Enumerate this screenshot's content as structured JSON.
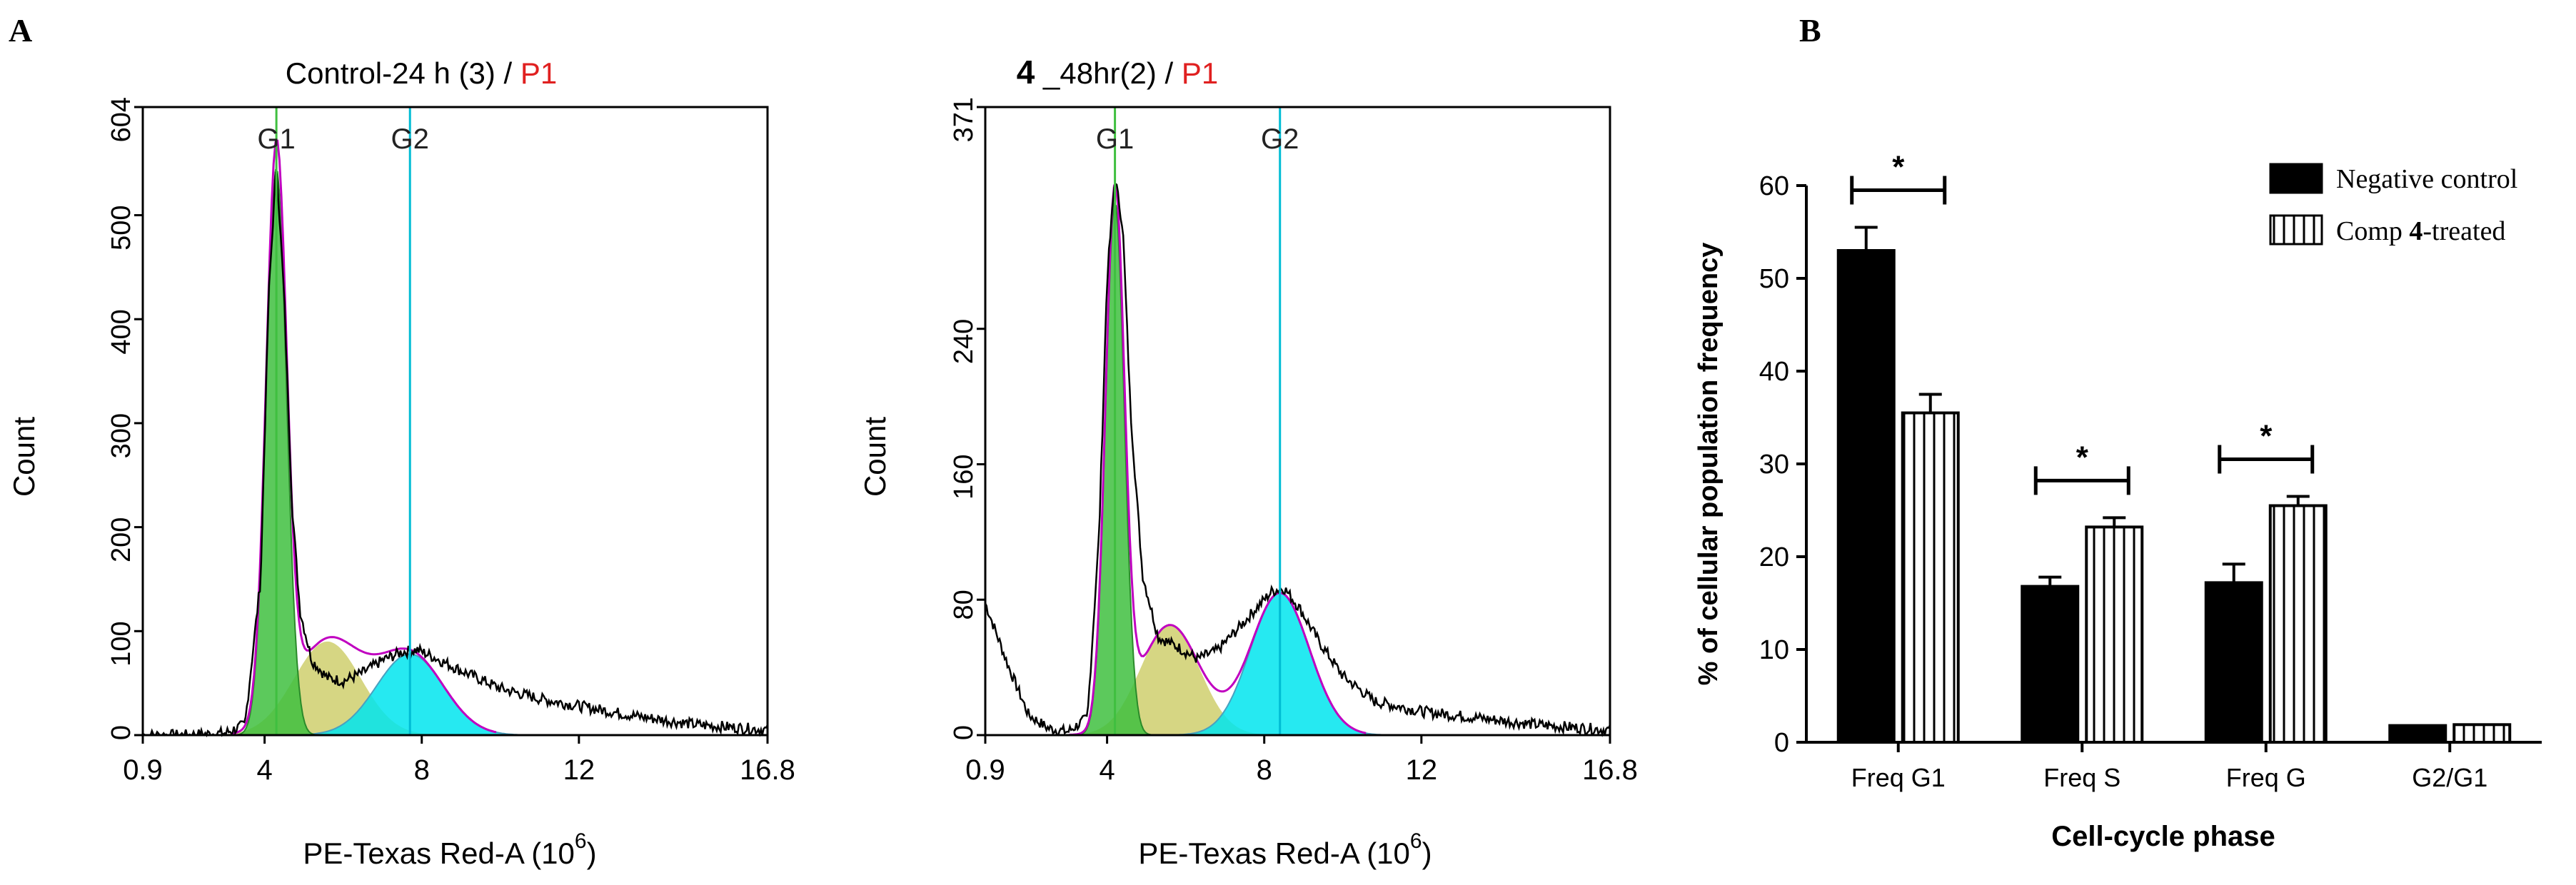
{
  "colors": {
    "panel_label": "#9b4a9b",
    "g1_fill": "#3fbf3f",
    "g2_fill": "#00e5ee",
    "s_fill": "#c8c85a",
    "envelope": "#c000c0",
    "histogram": "#000000",
    "marker_line": "#00bcd4",
    "p1_red": "#e02020"
  },
  "panel_a": {
    "label": "A",
    "hist1": {
      "title_main": "Control-24 h (3) / ",
      "title_p1": "P1",
      "xlabel": "PE-Texas Red-A  (10",
      "xlabel_exp": "6",
      "ylabel": "Count",
      "yticks": [
        "0",
        "100",
        "200",
        "300",
        "400",
        "500",
        "604"
      ],
      "xticks": [
        "0.9",
        "4",
        "8",
        "12",
        "16.8"
      ],
      "peak_labels": [
        "G1",
        "G2"
      ]
    },
    "hist2": {
      "title_bold": "4",
      "title_main": " _48hr(2) / ",
      "title_p1": "P1",
      "xlabel": "PE-Texas Red-A  (10",
      "xlabel_exp": "6",
      "ylabel": "Count",
      "yticks": [
        "0",
        "80",
        "160",
        "240",
        "371"
      ],
      "xticks": [
        "0.9",
        "4",
        "8",
        "12",
        "16.8"
      ],
      "peak_labels": [
        "G1",
        "G2"
      ]
    }
  },
  "panel_b": {
    "label": "B",
    "legend": {
      "negative": "Negative control",
      "treated_pre": "Comp ",
      "treated_bold": "4",
      "treated_post": "-treated"
    },
    "significance_marker": "*"
  },
  "chart_data": [
    {
      "type": "area",
      "title": "Control-24 h (3) / P1",
      "xlabel": "PE-Texas Red-A (10^6)",
      "ylabel": "Count",
      "xlim": [
        0.9,
        16.8
      ],
      "ylim": [
        0,
        604
      ],
      "gates": [
        {
          "name": "G1",
          "x": 4.3
        },
        {
          "name": "G2",
          "x": 7.7
        }
      ],
      "histogram": {
        "x": [
          0.9,
          2.0,
          3.0,
          3.5,
          3.9,
          4.1,
          4.3,
          4.5,
          4.7,
          4.9,
          5.2,
          5.6,
          6.0,
          6.5,
          7.0,
          7.5,
          7.9,
          8.3,
          9.0,
          10.0,
          11.0,
          12.0,
          13.5,
          15.0,
          16.8
        ],
        "y": [
          0,
          0,
          2,
          10,
          150,
          420,
          550,
          420,
          220,
          120,
          72,
          55,
          52,
          60,
          72,
          80,
          82,
          75,
          62,
          45,
          35,
          28,
          18,
          10,
          5
        ]
      },
      "g1_component": {
        "center": 4.3,
        "peak": 545,
        "sigma": 0.26
      },
      "s_component": {
        "center": 5.6,
        "peak": 90,
        "sigma": 0.85
      },
      "g2_component": {
        "center": 7.7,
        "peak": 78,
        "sigma": 0.85
      }
    },
    {
      "type": "area",
      "title": "4 _48hr(2) / P1",
      "xlabel": "PE-Texas Red-A (10^6)",
      "ylabel": "Count",
      "xlim": [
        0.9,
        16.8
      ],
      "ylim": [
        0,
        371
      ],
      "gates": [
        {
          "name": "G1",
          "x": 4.2
        },
        {
          "name": "G2",
          "x": 8.4
        }
      ],
      "histogram": {
        "x": [
          0.9,
          1.5,
          2.0,
          2.5,
          3.0,
          3.5,
          3.8,
          4.0,
          4.2,
          4.4,
          4.6,
          4.9,
          5.3,
          5.8,
          6.3,
          6.8,
          7.3,
          7.8,
          8.2,
          8.5,
          8.9,
          9.4,
          10.0,
          10.8,
          12.0,
          13.5,
          15.0,
          16.8
        ],
        "y": [
          78,
          40,
          12,
          4,
          2,
          10,
          120,
          270,
          330,
          300,
          190,
          95,
          58,
          52,
          45,
          50,
          62,
          75,
          85,
          87,
          75,
          55,
          35,
          20,
          14,
          10,
          6,
          3
        ]
      },
      "g1_component": {
        "center": 4.2,
        "peak": 315,
        "sigma": 0.24
      },
      "s_component": {
        "center": 5.6,
        "peak": 65,
        "sigma": 0.75
      },
      "g2_component": {
        "center": 8.4,
        "peak": 84,
        "sigma": 0.75
      }
    },
    {
      "type": "bar",
      "title": "",
      "xlabel": "Cell-cycle phase",
      "ylabel": "% of cellular population frequency",
      "ylim": [
        0,
        60
      ],
      "yticks": [
        0,
        10,
        20,
        30,
        40,
        50,
        60
      ],
      "categories": [
        "Freq G1",
        "Freq S",
        "Freq G",
        "G2/G1"
      ],
      "series": [
        {
          "name": "Negative control",
          "values": [
            53,
            16.8,
            17.2,
            1.8
          ],
          "errors": [
            2.5,
            1.0,
            2.0,
            0
          ]
        },
        {
          "name": "Comp 4-treated",
          "values": [
            35.5,
            23.2,
            25.5,
            1.9
          ],
          "errors": [
            2.0,
            1.0,
            1.0,
            0
          ]
        }
      ],
      "significance": [
        "*",
        "*",
        "*",
        ""
      ],
      "legend_position": "top-right"
    }
  ]
}
